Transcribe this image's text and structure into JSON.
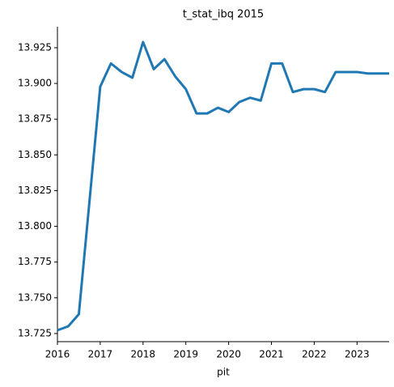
{
  "chart_data": {
    "type": "line",
    "title": "t_stat_ibq 2015",
    "x_label": "pit",
    "x": [
      2016,
      2016.25,
      2016.5,
      2016.75,
      2017,
      2017.25,
      2017.5,
      2017.75,
      2018,
      2018.25,
      2018.5,
      2018.75,
      2019,
      2019.25,
      2019.5,
      2019.75,
      2020,
      2020.25,
      2020.5,
      2020.75,
      2021,
      2021.25,
      2021.5,
      2021.75,
      2022,
      2022.25,
      2022.5,
      2022.75,
      2023,
      2023.25,
      2023.5,
      2023.75
    ],
    "series": [
      {
        "name": "t_stat_ibq",
        "color": "#1f77b4",
        "values": [
          13.7273,
          13.73,
          13.7385,
          13.818,
          13.8978,
          13.914,
          13.908,
          13.904,
          13.929,
          13.91,
          13.917,
          13.905,
          13.896,
          13.879,
          13.879,
          13.883,
          13.88,
          13.887,
          13.89,
          13.888,
          13.914,
          13.914,
          13.894,
          13.896,
          13.896,
          13.894,
          13.908,
          13.908,
          13.908,
          13.907,
          13.907,
          13.907
        ]
      }
    ],
    "xlim": [
      2016,
      2023.75
    ],
    "xticks": [
      2016,
      2017,
      2018,
      2019,
      2020,
      2021,
      2022,
      2023
    ],
    "ylim": [
      13.7193,
      13.9397
    ],
    "yticks": [
      13.725,
      {
        "value": 13.75,
        "label": "13.750"
      },
      13.775,
      {
        "value": 13.8,
        "label": "13.800"
      },
      13.825,
      {
        "value": 13.85,
        "label": "13.850"
      },
      13.875,
      {
        "value": 13.9,
        "label": "13.900"
      },
      13.925
    ]
  }
}
